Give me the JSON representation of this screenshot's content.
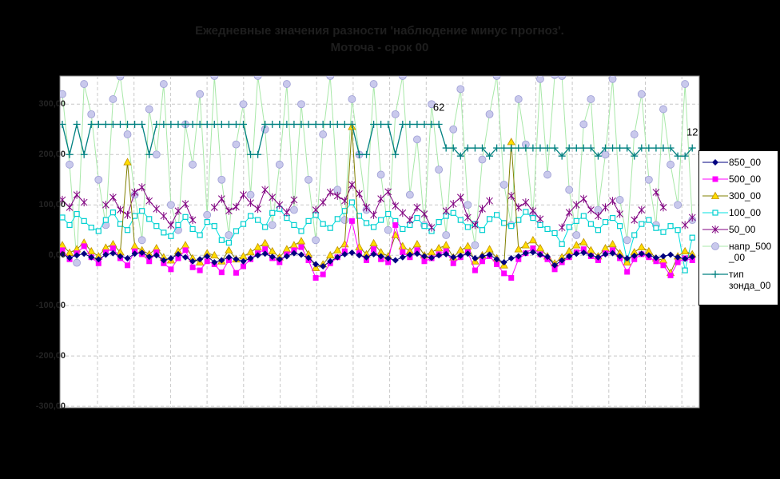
{
  "window": {
    "background": "#000000",
    "plot_background": "#FFFFFF"
  },
  "title": {
    "line1": "Ежедневные значения разности 'наблюдение минус прогноз'.",
    "line2": "Моточа - срок 00"
  },
  "chart_data": {
    "type": "line",
    "title": "Ежедневные значения разности 'наблюдение минус прогноз'. Моточа - срок 00",
    "x_axis": {
      "points": 88,
      "labels_visible": false
    },
    "y_axis": {
      "tick_labels": [
        "300,00",
        "200,00",
        "100,00",
        "0,00",
        "-100,00",
        "-200,00",
        "-300,00"
      ],
      "tick_values": [
        300,
        200,
        100,
        0,
        -100,
        -200,
        -300
      ],
      "min": -303,
      "max": 356
    },
    "grid": {
      "horizontal": true,
      "vertical": true,
      "style": "dashed",
      "color": "#C8C8C8",
      "plot_border": "#7F7F7F"
    },
    "legend": {
      "position": "right",
      "background": "#FFFFFF",
      "text_color": "#000000"
    },
    "annotations": [
      {
        "text": "62",
        "day": 53,
        "value": 287
      },
      {
        "text": "12",
        "day": 88,
        "value": 238
      }
    ],
    "series": [
      {
        "name": "850_00",
        "legend_lines": [
          "850_00"
        ],
        "marker": "diamond",
        "line_color": "#000080",
        "marker_color": "#000080",
        "marker_stroke": "#000080",
        "values": [
          2,
          -5,
          0,
          3,
          -4,
          -8,
          1,
          4,
          -2,
          -6,
          3,
          5,
          -3,
          0,
          -10,
          -6,
          2,
          -4,
          -12,
          -8,
          -2,
          -14,
          -10,
          -4,
          -8,
          -12,
          -6,
          0,
          3,
          -3,
          -8,
          -2,
          4,
          1,
          -5,
          -18,
          -22,
          -12,
          -4,
          2,
          5,
          0,
          -4,
          2,
          -2,
          -6,
          -10,
          -4,
          1,
          3,
          -2,
          -5,
          0,
          2,
          -4,
          -1,
          3,
          -6,
          -2,
          1,
          -8,
          -14,
          -6,
          -2,
          4,
          6,
          1,
          -3,
          -20,
          -10,
          -2,
          3,
          5,
          0,
          -4,
          2,
          4,
          -2,
          -6,
          -1,
          3,
          0,
          -5,
          -2,
          1,
          -4,
          -7,
          -3
        ]
      },
      {
        "name": "500_00",
        "legend_lines": [
          "500_00"
        ],
        "marker": "square",
        "line_color": "#FF00FF",
        "marker_color": "#FF00FF",
        "marker_stroke": "#FF00FF",
        "values": [
          10,
          -8,
          4,
          18,
          -4,
          -16,
          6,
          14,
          -6,
          -20,
          8,
          2,
          -12,
          6,
          -16,
          -28,
          -6,
          10,
          -24,
          -30,
          -12,
          -18,
          -34,
          -10,
          -35,
          -22,
          -8,
          4,
          12,
          -6,
          -14,
          2,
          10,
          16,
          -10,
          -45,
          -38,
          -16,
          -4,
          8,
          68,
          4,
          -10,
          12,
          -8,
          -14,
          60,
          6,
          -4,
          10,
          -12,
          -6,
          2,
          8,
          -16,
          -4,
          6,
          -30,
          -12,
          -2,
          -18,
          -36,
          -45,
          -8,
          4,
          14,
          2,
          -8,
          -28,
          -14,
          -4,
          6,
          12,
          -2,
          -10,
          4,
          10,
          -6,
          -33,
          -8,
          2,
          -4,
          -12,
          -20,
          -40,
          -14,
          -6,
          -10
        ]
      },
      {
        "name": "300_00",
        "legend_lines": [
          "300_00"
        ],
        "marker": "triangle",
        "line_color": "#808000",
        "marker_color": "#FFDD00",
        "marker_stroke": "#C09000",
        "values": [
          20,
          5,
          12,
          25,
          8,
          -2,
          15,
          22,
          6,
          185,
          18,
          10,
          2,
          14,
          -4,
          -10,
          8,
          20,
          -6,
          -14,
          4,
          0,
          -12,
          10,
          -8,
          -2,
          6,
          16,
          24,
          8,
          -4,
          12,
          20,
          28,
          2,
          -25,
          -18,
          0,
          10,
          22,
          255,
          16,
          2,
          24,
          6,
          -2,
          40,
          18,
          8,
          22,
          0,
          6,
          14,
          20,
          -4,
          10,
          18,
          -12,
          0,
          12,
          -6,
          -20,
          225,
          12,
          20,
          30,
          14,
          -2,
          -16,
          -4,
          8,
          20,
          26,
          10,
          -2,
          14,
          22,
          4,
          -14,
          6,
          16,
          8,
          -6,
          -10,
          -35,
          -2,
          8,
          2
        ]
      },
      {
        "name": "100_00",
        "legend_lines": [
          "100_00"
        ],
        "marker": "osquare",
        "line_color": "#00E1E1",
        "marker_color": "#FFFFFF",
        "marker_stroke": "#00CFCF",
        "values": [
          75,
          60,
          82,
          68,
          55,
          48,
          70,
          85,
          62,
          50,
          78,
          88,
          72,
          58,
          45,
          38,
          60,
          76,
          52,
          40,
          66,
          58,
          30,
          25,
          48,
          62,
          78,
          70,
          56,
          84,
          92,
          74,
          60,
          48,
          68,
          80,
          62,
          54,
          72,
          88,
          105,
          78,
          64,
          56,
          70,
          82,
          68,
          52,
          60,
          74,
          58,
          48,
          66,
          78,
          84,
          70,
          56,
          62,
          50,
          72,
          80,
          64,
          58,
          70,
          86,
          74,
          60,
          52,
          44,
          22,
          56,
          68,
          78,
          62,
          50,
          66,
          74,
          58,
          -10,
          40,
          62,
          70,
          54,
          46,
          58,
          50,
          -30,
          35
        ]
      },
      {
        "name": "50_00",
        "legend_lines": [
          "50_00"
        ],
        "marker": "star",
        "line_color": "#800080",
        "marker_color": "#800080",
        "marker_stroke": "#800080",
        "values": [
          110,
          95,
          120,
          105,
          null,
          null,
          100,
          115,
          90,
          80,
          125,
          135,
          108,
          92,
          78,
          60,
          88,
          102,
          70,
          null,
          null,
          95,
          112,
          88,
          96,
          120,
          104,
          92,
          130,
          115,
          100,
          85,
          110,
          null,
          null,
          90,
          105,
          125,
          118,
          108,
          140,
          122,
          95,
          80,
          112,
          126,
          98,
          84,
          70,
          95,
          82,
          55,
          null,
          88,
          102,
          115,
          75,
          60,
          92,
          108,
          null,
          null,
          118,
          95,
          105,
          88,
          72,
          null,
          null,
          55,
          85,
          100,
          112,
          90,
          78,
          95,
          108,
          82,
          null,
          70,
          90,
          null,
          125,
          95,
          null,
          null,
          60,
          75
        ]
      },
      {
        "name": "напр_500_00",
        "legend_lines": [
          "напр_500",
          "_00"
        ],
        "marker": "circle",
        "line_color": "#A8E8A8",
        "marker_color": "#C9C9EC",
        "marker_stroke": "#9C9CD4",
        "values": [
          320,
          180,
          -15,
          340,
          280,
          150,
          60,
          310,
          355,
          240,
          120,
          30,
          290,
          200,
          340,
          100,
          50,
          260,
          180,
          320,
          80,
          356,
          150,
          40,
          220,
          300,
          120,
          356,
          250,
          60,
          180,
          340,
          90,
          300,
          150,
          30,
          240,
          356,
          130,
          70,
          310,
          200,
          90,
          340,
          160,
          50,
          280,
          356,
          120,
          230,
          60,
          300,
          170,
          40,
          250,
          330,
          100,
          20,
          190,
          280,
          356,
          140,
          60,
          310,
          220,
          80,
          350,
          160,
          358,
          356,
          130,
          40,
          260,
          310,
          90,
          200,
          350,
          110,
          30,
          240,
          320,
          150,
          60,
          290,
          180,
          100,
          340,
          70
        ]
      },
      {
        "name": "тип зонда_00",
        "legend_lines": [
          "тип",
          "зонда_00"
        ],
        "marker": "plus",
        "line_color": "#008080",
        "marker_color": "#008080",
        "marker_stroke": "#008080",
        "values": [
          260,
          200,
          260,
          200,
          260,
          260,
          260,
          260,
          260,
          260,
          260,
          260,
          200,
          260,
          260,
          260,
          260,
          260,
          260,
          260,
          260,
          260,
          260,
          260,
          260,
          260,
          200,
          200,
          260,
          260,
          260,
          260,
          260,
          260,
          260,
          260,
          260,
          260,
          260,
          260,
          260,
          200,
          200,
          260,
          260,
          260,
          200,
          260,
          260,
          260,
          260,
          260,
          260,
          213,
          213,
          197,
          213,
          213,
          213,
          197,
          213,
          213,
          213,
          213,
          213,
          213,
          213,
          213,
          213,
          197,
          213,
          213,
          213,
          213,
          197,
          213,
          213,
          213,
          213,
          197,
          213,
          213,
          213,
          213,
          213,
          197,
          197,
          213
        ]
      }
    ]
  }
}
